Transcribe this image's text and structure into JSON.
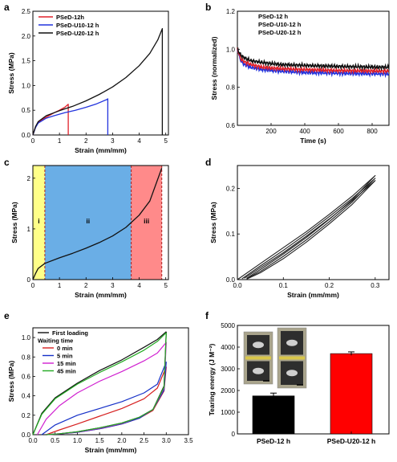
{
  "chart_data": [
    {
      "panel": "a",
      "type": "line",
      "xlabel": "Strain (mm/mm)",
      "ylabel": "Stress (MPa)",
      "xlim": [
        0,
        5.1
      ],
      "ylim": [
        0,
        2.5
      ],
      "xticks": [
        0,
        1,
        2,
        3,
        4,
        5
      ],
      "yticks": [
        0.0,
        0.5,
        1.0,
        1.5,
        2.0,
        2.5
      ],
      "xticklabels": [
        "0",
        "1",
        "2",
        "3",
        "4",
        "5"
      ],
      "yticklabels": [
        "0.0",
        "0.5",
        "1.0",
        "1.5",
        "2.0",
        "2.5"
      ],
      "legend": "top-left",
      "series": [
        {
          "name": "PSeD-12h",
          "color": "#e0202a",
          "x": [
            0,
            0.1,
            0.2,
            0.4,
            0.6,
            0.8,
            1.0,
            1.2,
            1.33,
            1.33
          ],
          "y": [
            0,
            0.16,
            0.25,
            0.33,
            0.39,
            0.45,
            0.5,
            0.56,
            0.62,
            0
          ]
        },
        {
          "name": "PSeD-U10-12 h",
          "color": "#2233dd",
          "x": [
            0,
            0.1,
            0.2,
            0.5,
            0.8,
            1.2,
            1.6,
            2.0,
            2.4,
            2.8,
            2.82,
            2.82
          ],
          "y": [
            0,
            0.15,
            0.24,
            0.34,
            0.39,
            0.45,
            0.5,
            0.56,
            0.63,
            0.72,
            0.73,
            0
          ]
        },
        {
          "name": "PSeD-U20-12 h",
          "color": "#111111",
          "x": [
            0,
            0.1,
            0.2,
            0.5,
            1.0,
            1.5,
            2.0,
            2.5,
            3.0,
            3.5,
            4.0,
            4.4,
            4.7,
            4.87,
            4.87
          ],
          "y": [
            0,
            0.17,
            0.27,
            0.39,
            0.49,
            0.58,
            0.69,
            0.82,
            0.97,
            1.16,
            1.4,
            1.65,
            1.92,
            2.15,
            0
          ]
        }
      ]
    },
    {
      "panel": "b",
      "type": "line",
      "xlabel": "Time (s)",
      "ylabel": "Stress (normalized)",
      "xlim": [
        0,
        900
      ],
      "ylim": [
        0.6,
        1.2
      ],
      "xticks": [
        200,
        400,
        600,
        800
      ],
      "yticks": [
        0.6,
        0.8,
        1.0,
        1.2
      ],
      "xticklabels": [
        "200",
        "400",
        "600",
        "800"
      ],
      "yticklabels": [
        "0.6",
        "0.8",
        "1.0",
        "1.2"
      ],
      "legend": "top-right",
      "series": [
        {
          "name": "PSeD-12 h",
          "color": "#111111",
          "x": [
            0,
            20,
            40,
            80,
            150,
            250,
            400,
            600,
            900
          ],
          "y": [
            1.0,
            0.97,
            0.955,
            0.94,
            0.93,
            0.92,
            0.915,
            0.91,
            0.905
          ]
        },
        {
          "name": "PSeD-U10-12 h",
          "color": "#e0202a",
          "x": [
            0,
            20,
            40,
            80,
            150,
            250,
            400,
            600,
            900
          ],
          "y": [
            1.0,
            0.95,
            0.935,
            0.92,
            0.905,
            0.898,
            0.893,
            0.888,
            0.885
          ]
        },
        {
          "name": "PSeD-U20-12 h",
          "color": "#2233dd",
          "x": [
            0,
            20,
            40,
            80,
            150,
            250,
            400,
            600,
            900
          ],
          "y": [
            1.0,
            0.94,
            0.92,
            0.905,
            0.893,
            0.885,
            0.878,
            0.874,
            0.87
          ]
        }
      ]
    },
    {
      "panel": "c",
      "type": "line",
      "xlabel": "Strain (mm/mm)",
      "ylabel": "Stress (MPa)",
      "xlim": [
        0,
        5.1
      ],
      "ylim": [
        0,
        2.25
      ],
      "xticks": [
        0,
        1,
        2,
        3,
        4,
        5
      ],
      "yticks": [
        0,
        1,
        2
      ],
      "xticklabels": [
        "0",
        "1",
        "2",
        "3",
        "4",
        "5"
      ],
      "yticklabels": [
        "0",
        "1",
        "2"
      ],
      "regions": [
        {
          "label": "i",
          "x0": 0,
          "x1": 0.45,
          "color": "#ffff88"
        },
        {
          "label": "ii",
          "x0": 0.45,
          "x1": 3.7,
          "color": "#6aaee6"
        },
        {
          "label": "iii",
          "x0": 3.7,
          "x1": 4.85,
          "color": "#ff8a8a"
        }
      ],
      "series": [
        {
          "name": "",
          "color": "#111111",
          "x": [
            0,
            0.1,
            0.2,
            0.45,
            1.0,
            1.5,
            2.0,
            2.5,
            3.0,
            3.5,
            4.0,
            4.4,
            4.85
          ],
          "y": [
            0,
            0.12,
            0.22,
            0.32,
            0.43,
            0.52,
            0.62,
            0.73,
            0.86,
            1.03,
            1.27,
            1.55,
            2.2
          ]
        }
      ]
    },
    {
      "panel": "d",
      "type": "line",
      "xlabel": "Strain (mm/mm)",
      "ylabel": "Stress (MPa)",
      "xlim": [
        0,
        0.33
      ],
      "ylim": [
        0,
        0.25
      ],
      "xticks": [
        0.0,
        0.1,
        0.2,
        0.3
      ],
      "yticks": [
        0.0,
        0.1,
        0.2
      ],
      "xticklabels": [
        "0.0",
        "0.1",
        "0.2",
        "0.3"
      ],
      "yticklabels": [
        "0.0",
        "0.1",
        "0.2"
      ],
      "series": [
        {
          "name": "",
          "color": "#222222",
          "x": [
            0,
            0.05,
            0.1,
            0.15,
            0.2,
            0.25,
            0.3,
            0.25,
            0.2,
            0.15,
            0.1,
            0.05,
            0.02
          ],
          "y": [
            0,
            0.035,
            0.07,
            0.105,
            0.143,
            0.183,
            0.228,
            0.175,
            0.132,
            0.092,
            0.056,
            0.022,
            0.003
          ]
        },
        {
          "name": "",
          "color": "#222222",
          "x": [
            0.01,
            0.05,
            0.1,
            0.15,
            0.2,
            0.25,
            0.3,
            0.25,
            0.2,
            0.15,
            0.1,
            0.05,
            0.02
          ],
          "y": [
            0.002,
            0.03,
            0.064,
            0.1,
            0.138,
            0.178,
            0.222,
            0.17,
            0.127,
            0.087,
            0.051,
            0.018,
            0.002
          ]
        },
        {
          "name": "",
          "color": "#222222",
          "x": [
            0.015,
            0.05,
            0.1,
            0.15,
            0.2,
            0.25,
            0.3,
            0.25,
            0.2,
            0.15,
            0.1,
            0.05,
            0.02
          ],
          "y": [
            0.003,
            0.026,
            0.059,
            0.095,
            0.133,
            0.173,
            0.217,
            0.165,
            0.122,
            0.082,
            0.046,
            0.015,
            0.001
          ]
        }
      ]
    },
    {
      "panel": "e",
      "type": "line",
      "xlabel": "Strain (mm/mm)",
      "ylabel": "Stress (MPa)",
      "xlim": [
        0,
        3.5
      ],
      "ylim": [
        0,
        1.1
      ],
      "xticks": [
        0.0,
        0.5,
        1.0,
        1.5,
        2.0,
        2.5,
        3.0,
        3.5
      ],
      "yticks": [
        0.0,
        0.2,
        0.4,
        0.6,
        0.8,
        1.0
      ],
      "xticklabels": [
        "0.0",
        "0.5",
        "1.0",
        "1.5",
        "2.0",
        "2.5",
        "3.0",
        "3.5"
      ],
      "yticklabels": [
        "0.0",
        "0.2",
        "0.4",
        "0.6",
        "0.8",
        "1.0"
      ],
      "legend": "top-left",
      "legend_subtitle": "Waiting time",
      "series": [
        {
          "name": "First loading",
          "color": "#111111",
          "loading_x": [
            0,
            0.2,
            0.5,
            1.0,
            1.5,
            2.0,
            2.5,
            2.8,
            3.0
          ],
          "loading_y": [
            0,
            0.22,
            0.38,
            0.53,
            0.66,
            0.77,
            0.9,
            0.98,
            1.06
          ],
          "unloading_x": [
            3.0,
            2.95,
            2.7,
            2.4,
            2.0,
            1.5,
            1.0,
            0.6,
            0.3
          ],
          "unloading_y": [
            1.06,
            0.5,
            0.26,
            0.18,
            0.12,
            0.07,
            0.03,
            0.01,
            0
          ]
        },
        {
          "name": "0 min",
          "color": "#d62020",
          "loading_x": [
            0.3,
            0.6,
            1.0,
            1.5,
            2.0,
            2.5,
            2.8,
            3.0
          ],
          "loading_y": [
            0,
            0.05,
            0.11,
            0.19,
            0.27,
            0.37,
            0.48,
            0.7
          ],
          "unloading_x": [
            3.0,
            2.95,
            2.7,
            2.4,
            2.0,
            1.5,
            1.0,
            0.6,
            0.3
          ],
          "unloading_y": [
            0.7,
            0.45,
            0.25,
            0.17,
            0.11,
            0.06,
            0.025,
            0.008,
            0
          ]
        },
        {
          "name": "5 min",
          "color": "#1530c8",
          "loading_x": [
            0.2,
            0.5,
            1.0,
            1.5,
            2.0,
            2.5,
            2.8,
            3.0
          ],
          "loading_y": [
            0,
            0.1,
            0.2,
            0.27,
            0.34,
            0.43,
            0.52,
            0.75
          ],
          "unloading_x": [
            3.0,
            2.95,
            2.7,
            2.4,
            2.0,
            1.5,
            1.0,
            0.6,
            0.3
          ],
          "unloading_y": [
            0.75,
            0.46,
            0.26,
            0.17,
            0.11,
            0.06,
            0.025,
            0.008,
            0
          ]
        },
        {
          "name": "15 min",
          "color": "#d020d0",
          "loading_x": [
            0.1,
            0.3,
            0.6,
            1.0,
            1.5,
            2.0,
            2.5,
            2.8,
            3.0
          ],
          "loading_y": [
            0,
            0.16,
            0.3,
            0.43,
            0.55,
            0.65,
            0.76,
            0.84,
            0.95
          ],
          "unloading_x": [
            3.0,
            2.95,
            2.7,
            2.4,
            2.0,
            1.5,
            1.0,
            0.6,
            0.3
          ],
          "unloading_y": [
            0.95,
            0.48,
            0.26,
            0.18,
            0.115,
            0.065,
            0.028,
            0.009,
            0
          ]
        },
        {
          "name": "45 min",
          "color": "#22aa22",
          "loading_x": [
            0,
            0.2,
            0.5,
            1.0,
            1.5,
            2.0,
            2.5,
            2.8,
            3.0
          ],
          "loading_y": [
            0,
            0.21,
            0.37,
            0.52,
            0.64,
            0.75,
            0.87,
            0.96,
            1.05
          ],
          "unloading_x": [
            3.0,
            2.95,
            2.7,
            2.4,
            2.0,
            1.5,
            1.0,
            0.6,
            0.3
          ],
          "unloading_y": [
            1.05,
            0.49,
            0.26,
            0.18,
            0.12,
            0.07,
            0.03,
            0.01,
            0
          ]
        }
      ]
    },
    {
      "panel": "f",
      "type": "bar",
      "ylabel": "Tearing energy (J M⁻²)",
      "ylim": [
        0,
        5000
      ],
      "yticks": [
        0,
        1000,
        2000,
        3000,
        4000,
        5000
      ],
      "yticklabels": [
        "0",
        "1000",
        "2000",
        "3000",
        "4000",
        "5000"
      ],
      "categories": [
        "PSeD-12 h",
        "PSeD-U20-12 h"
      ],
      "values": [
        1750,
        3700
      ],
      "errors": [
        130,
        80
      ],
      "colors": [
        "#000000",
        "#ff0000"
      ]
    }
  ]
}
